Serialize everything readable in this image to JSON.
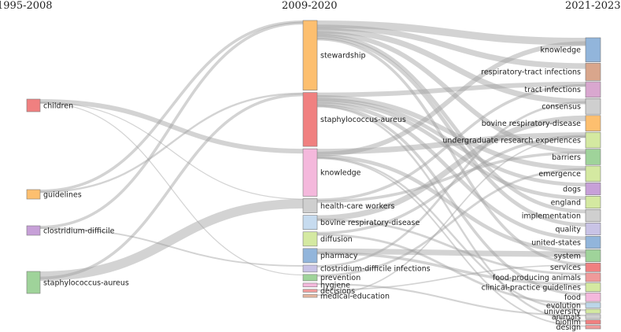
{
  "periods": [
    "1995-2008",
    "2009-2020",
    "2021-2023"
  ],
  "colors": {
    "orange": "#fdbf6f",
    "red": "#f08080",
    "pink": "#f4b8dc",
    "gray": "#cfcfcf",
    "lightblue": "#c6dbef",
    "lightgreen": "#d4e9a1",
    "blue": "#92b5db",
    "lavender": "#c9c3e6",
    "green": "#9fd39a",
    "salmon": "#ef9a9a",
    "tan": "#e9b9a0",
    "mauve": "#d9a7cf",
    "brown": "#d9a68c",
    "violet": "#c7a0d8",
    "paleblue": "#bcd6e8"
  },
  "columns": [
    {
      "period": "1995-2008",
      "nodes": [
        {
          "id": "a_children",
          "label": "children",
          "weight": 4,
          "color": "red"
        },
        {
          "id": "a_guidelines",
          "label": "guidelines",
          "weight": 3,
          "color": "orange"
        },
        {
          "id": "a_cdiff",
          "label": "clostridium-difficile",
          "weight": 3,
          "color": "violet"
        },
        {
          "id": "a_staph",
          "label": "staphylococcus-aureus",
          "weight": 7,
          "color": "green"
        }
      ]
    },
    {
      "period": "2009-2020",
      "nodes": [
        {
          "id": "b_stewardship",
          "label": "stewardship",
          "weight": 22,
          "color": "orange"
        },
        {
          "id": "b_staph",
          "label": "staphylococcus-aureus",
          "weight": 17,
          "color": "red"
        },
        {
          "id": "b_knowledge",
          "label": "knowledge",
          "weight": 15,
          "color": "pink"
        },
        {
          "id": "b_hcw",
          "label": "health-care workers",
          "weight": 4.5,
          "color": "gray"
        },
        {
          "id": "b_bovine",
          "label": "bovine respiratory-disease",
          "weight": 4.5,
          "color": "lightblue"
        },
        {
          "id": "b_diffusion",
          "label": "diffusion",
          "weight": 4.5,
          "color": "lightgreen"
        },
        {
          "id": "b_pharmacy",
          "label": "pharmacy",
          "weight": 4.5,
          "color": "blue"
        },
        {
          "id": "b_cdi",
          "label": "clostridium-difficile infections",
          "weight": 2.2,
          "color": "lavender"
        },
        {
          "id": "b_prevention",
          "label": "prevention",
          "weight": 2,
          "color": "green"
        },
        {
          "id": "b_hygiene",
          "label": "hygiene",
          "weight": 1.2,
          "color": "pink"
        },
        {
          "id": "b_decisions",
          "label": "decisions",
          "weight": 0.9,
          "color": "salmon"
        },
        {
          "id": "b_meded",
          "label": "medical-education",
          "weight": 0.9,
          "color": "tan"
        }
      ]
    },
    {
      "period": "2021-2023",
      "nodes": [
        {
          "id": "c_knowledge",
          "label": "knowledge",
          "weight": 7,
          "color": "blue"
        },
        {
          "id": "c_rti",
          "label": "respiratory-tract infections",
          "weight": 5,
          "color": "brown"
        },
        {
          "id": "c_tract",
          "label": "tract infections",
          "weight": 4.5,
          "color": "mauve"
        },
        {
          "id": "c_consensus",
          "label": "consensus",
          "weight": 4.5,
          "color": "gray"
        },
        {
          "id": "c_bovine",
          "label": "bovine respiratory-disease",
          "weight": 4.5,
          "color": "orange"
        },
        {
          "id": "c_ure",
          "label": "undergraduate research experiences",
          "weight": 4.5,
          "color": "lightgreen"
        },
        {
          "id": "c_barriers",
          "label": "barriers",
          "weight": 4.5,
          "color": "green"
        },
        {
          "id": "c_emergence",
          "label": "emergence",
          "weight": 4.5,
          "color": "lightgreen"
        },
        {
          "id": "c_dogs",
          "label": "dogs",
          "weight": 3.5,
          "color": "violet"
        },
        {
          "id": "c_england",
          "label": "england",
          "weight": 3.5,
          "color": "lightgreen"
        },
        {
          "id": "c_implementation",
          "label": "implementation",
          "weight": 3.5,
          "color": "gray"
        },
        {
          "id": "c_quality",
          "label": "quality",
          "weight": 3.5,
          "color": "lavender"
        },
        {
          "id": "c_us",
          "label": "united-states",
          "weight": 3.5,
          "color": "blue"
        },
        {
          "id": "c_system",
          "label": "system",
          "weight": 3.5,
          "color": "green"
        },
        {
          "id": "c_services",
          "label": "services",
          "weight": 2.5,
          "color": "red"
        },
        {
          "id": "c_fpa",
          "label": "food-producing animals",
          "weight": 2.5,
          "color": "salmon"
        },
        {
          "id": "c_cpg",
          "label": "clinical-practice guidelines",
          "weight": 2.5,
          "color": "lightgreen"
        },
        {
          "id": "c_food",
          "label": "food",
          "weight": 2.5,
          "color": "pink"
        },
        {
          "id": "c_evolution",
          "label": "evolution",
          "weight": 1.5,
          "color": "paleblue"
        },
        {
          "id": "c_university",
          "label": "university",
          "weight": 1.2,
          "color": "lightgreen"
        },
        {
          "id": "c_animals",
          "label": "animals",
          "weight": 1.2,
          "color": "gray"
        },
        {
          "id": "c_biofilm",
          "label": "biofilm",
          "weight": 1.2,
          "color": "red"
        },
        {
          "id": "c_design",
          "label": "design",
          "weight": 1.0,
          "color": "salmon"
        }
      ]
    }
  ],
  "links": [
    {
      "source": "a_children",
      "target": "b_knowledge",
      "value": 2.5
    },
    {
      "source": "a_children",
      "target": "b_hcw",
      "value": 0.5
    },
    {
      "source": "a_children",
      "target": "b_prevention",
      "value": 0.5
    },
    {
      "source": "a_guidelines",
      "target": "b_stewardship",
      "value": 1.5
    },
    {
      "source": "a_guidelines",
      "target": "b_staph",
      "value": 1
    },
    {
      "source": "a_cdiff",
      "target": "b_stewardship",
      "value": 1.5
    },
    {
      "source": "a_cdiff",
      "target": "b_cdi",
      "value": 0.8
    },
    {
      "source": "a_staph",
      "target": "b_hcw",
      "value": 5
    },
    {
      "source": "a_staph",
      "target": "b_staph",
      "value": 1.5
    },
    {
      "source": "b_stewardship",
      "target": "c_knowledge",
      "value": 4
    },
    {
      "source": "b_stewardship",
      "target": "c_rti",
      "value": 3
    },
    {
      "source": "b_stewardship",
      "target": "c_consensus",
      "value": 3
    },
    {
      "source": "b_stewardship",
      "target": "c_barriers",
      "value": 2.5
    },
    {
      "source": "b_stewardship",
      "target": "c_implementation",
      "value": 2
    },
    {
      "source": "b_stewardship",
      "target": "c_quality",
      "value": 2
    },
    {
      "source": "b_stewardship",
      "target": "c_services",
      "value": 1.5
    },
    {
      "source": "b_staph",
      "target": "c_tract",
      "value": 2.5
    },
    {
      "source": "b_staph",
      "target": "c_emergence",
      "value": 2.5
    },
    {
      "source": "b_staph",
      "target": "c_dogs",
      "value": 2
    },
    {
      "source": "b_staph",
      "target": "c_england",
      "value": 2
    },
    {
      "source": "b_staph",
      "target": "c_us",
      "value": 2
    },
    {
      "source": "b_staph",
      "target": "c_food",
      "value": 1.5
    },
    {
      "source": "b_staph",
      "target": "c_biofilm",
      "value": 1
    },
    {
      "source": "b_knowledge",
      "target": "c_ure",
      "value": 3
    },
    {
      "source": "b_knowledge",
      "target": "c_knowledge",
      "value": 2.5
    },
    {
      "source": "b_knowledge",
      "target": "c_system",
      "value": 2
    },
    {
      "source": "b_knowledge",
      "target": "c_university",
      "value": 1
    },
    {
      "source": "b_knowledge",
      "target": "c_design",
      "value": 0.8
    },
    {
      "source": "b_hcw",
      "target": "c_tract",
      "value": 1.5
    },
    {
      "source": "b_hcw",
      "target": "c_barriers",
      "value": 1.5
    },
    {
      "source": "b_bovine",
      "target": "c_bovine",
      "value": 3
    },
    {
      "source": "b_bovine",
      "target": "c_fpa",
      "value": 1.2
    },
    {
      "source": "b_diffusion",
      "target": "c_ure",
      "value": 1.5
    },
    {
      "source": "b_diffusion",
      "target": "c_evolution",
      "value": 1.2
    },
    {
      "source": "b_pharmacy",
      "target": "c_system",
      "value": 3
    },
    {
      "source": "b_pharmacy",
      "target": "c_cpg",
      "value": 1.5
    },
    {
      "source": "b_cdi",
      "target": "c_consensus",
      "value": 1.2
    },
    {
      "source": "b_prevention",
      "target": "c_emergence",
      "value": 1.2
    },
    {
      "source": "b_hygiene",
      "target": "c_animals",
      "value": 0.9
    },
    {
      "source": "b_decisions",
      "target": "c_services",
      "value": 0.7
    },
    {
      "source": "b_meded",
      "target": "c_ure",
      "value": 0.7
    }
  ]
}
